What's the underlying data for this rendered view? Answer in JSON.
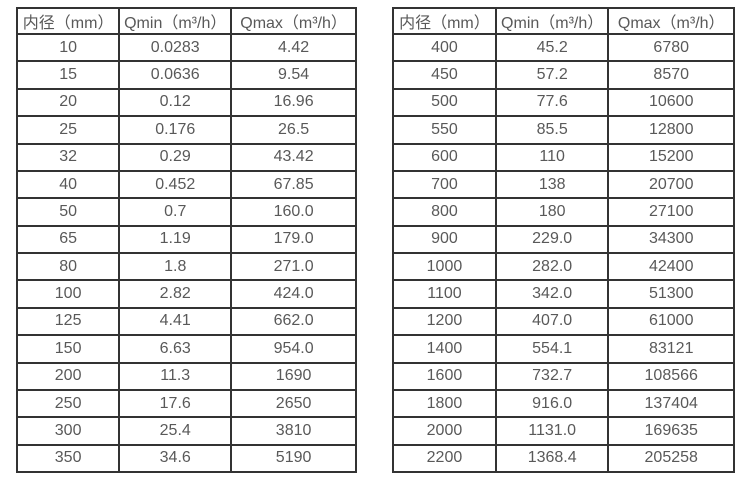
{
  "colors": {
    "background": "#ffffff",
    "border": "#333333",
    "text": "#595959"
  },
  "tables": [
    {
      "name": "flow-spec-table-small-diameters",
      "headers": [
        "内径（mm）",
        "Qmin（m³/h）",
        "Qmax（m³/h）"
      ],
      "rows": [
        [
          "10",
          "0.0283",
          "4.42"
        ],
        [
          "15",
          "0.0636",
          "9.54"
        ],
        [
          "20",
          "0.12",
          "16.96"
        ],
        [
          "25",
          "0.176",
          "26.5"
        ],
        [
          "32",
          "0.29",
          "43.42"
        ],
        [
          "40",
          "0.452",
          "67.85"
        ],
        [
          "50",
          "0.7",
          "160.0"
        ],
        [
          "65",
          "1.19",
          "179.0"
        ],
        [
          "80",
          "1.8",
          "271.0"
        ],
        [
          "100",
          "2.82",
          "424.0"
        ],
        [
          "125",
          "4.41",
          "662.0"
        ],
        [
          "150",
          "6.63",
          "954.0"
        ],
        [
          "200",
          "11.3",
          "1690"
        ],
        [
          "250",
          "17.6",
          "2650"
        ],
        [
          "300",
          "25.4",
          "3810"
        ],
        [
          "350",
          "34.6",
          "5190"
        ]
      ]
    },
    {
      "name": "flow-spec-table-large-diameters",
      "headers": [
        "内径（mm）",
        "Qmin（m³/h）",
        "Qmax（m³/h）"
      ],
      "rows": [
        [
          "400",
          "45.2",
          "6780"
        ],
        [
          "450",
          "57.2",
          "8570"
        ],
        [
          "500",
          "77.6",
          "10600"
        ],
        [
          "550",
          "85.5",
          "12800"
        ],
        [
          "600",
          "110",
          "15200"
        ],
        [
          "700",
          "138",
          "20700"
        ],
        [
          "800",
          "180",
          "27100"
        ],
        [
          "900",
          "229.0",
          "34300"
        ],
        [
          "1000",
          "282.0",
          "42400"
        ],
        [
          "1100",
          "342.0",
          "51300"
        ],
        [
          "1200",
          "407.0",
          "61000"
        ],
        [
          "1400",
          "554.1",
          "83121"
        ],
        [
          "1600",
          "732.7",
          "108566"
        ],
        [
          "1800",
          "916.0",
          "137404"
        ],
        [
          "2000",
          "1131.0",
          "169635"
        ],
        [
          "2200",
          "1368.4",
          "205258"
        ]
      ]
    }
  ]
}
